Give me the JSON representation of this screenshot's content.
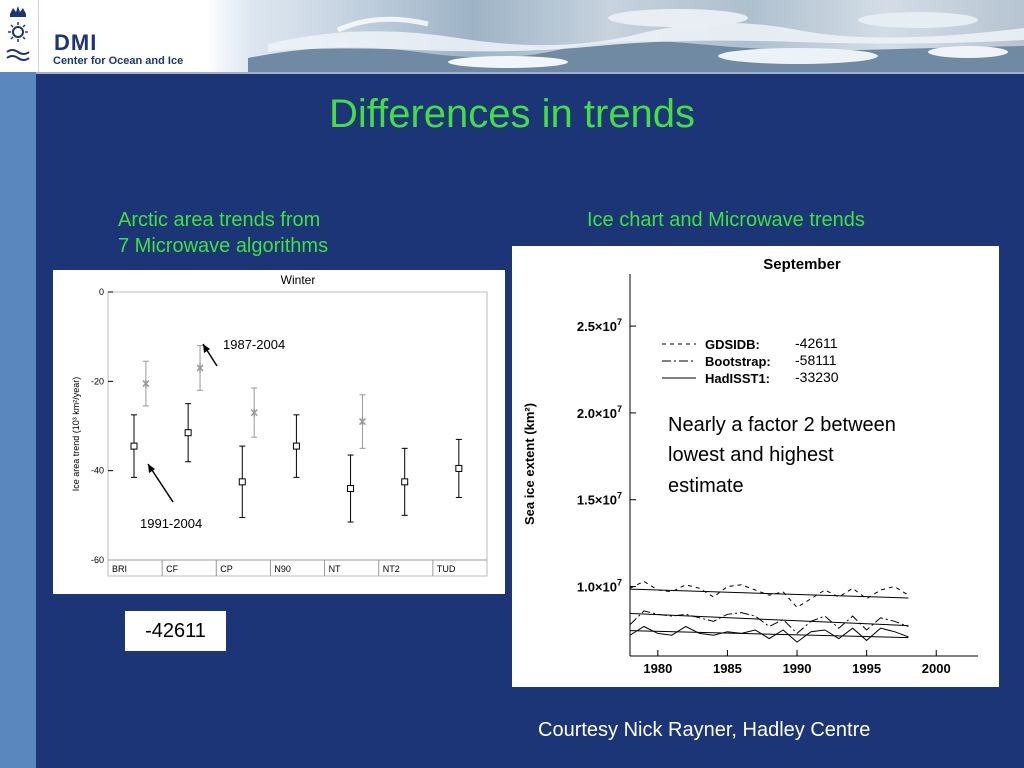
{
  "header": {
    "logo_text": "DMI",
    "org_name": "Center for Ocean and Ice"
  },
  "title": "Differences in trends",
  "left_heading": [
    "Arctic area trends from",
    "7 Microwave algorithms"
  ],
  "right_heading": "Ice chart and Microwave trends",
  "value_box": "-42611",
  "courtesy": "Courtesy Nick Rayner, Hadley Centre",
  "colors": {
    "background": "#1b3577",
    "title": "#44dd44",
    "heading": "#3fe03f",
    "series_1991": "#000000",
    "series_1987": "#999999"
  },
  "chart_data": [
    {
      "type": "scatter",
      "title": "Winter",
      "ylabel": "Ice area trend (10³ km²/year)",
      "ylim": [
        -60,
        0
      ],
      "yticks": [
        0,
        -20,
        -40,
        -60
      ],
      "categories": [
        "BRI",
        "CF",
        "CP",
        "N90",
        "NT",
        "NT2",
        "TUD"
      ],
      "series": [
        {
          "name": "1991-2004",
          "values": [
            -34.5,
            -31.5,
            -42.5,
            -34.5,
            -44,
            -42.5,
            -39.5
          ],
          "errors": [
            7,
            6.5,
            8,
            7,
            7.5,
            7.5,
            6.5
          ]
        },
        {
          "name": "1987-2004",
          "values": [
            -20.5,
            -17,
            -27,
            null,
            -29,
            null,
            null
          ],
          "errors": [
            5,
            5,
            5.5,
            null,
            6,
            null,
            null
          ]
        }
      ],
      "annotations": [
        "1987-2004",
        "1991-2004"
      ]
    },
    {
      "type": "line",
      "title": "September",
      "ylabel": "Sea ice extent (km²)",
      "xlim": [
        1978,
        2003
      ],
      "ylim": [
        6000000,
        28000000
      ],
      "xticks": [
        1980,
        1985,
        1990,
        1995,
        2000
      ],
      "yticks": [
        {
          "value": 25000000,
          "mantissa": "2.5×10",
          "exp": "7"
        },
        {
          "value": 20000000,
          "mantissa": "2.0×10",
          "exp": "7"
        },
        {
          "value": 15000000,
          "mantissa": "1.5×10",
          "exp": "7"
        },
        {
          "value": 10000000,
          "mantissa": "1.0×10",
          "exp": "7"
        }
      ],
      "x": [
        1978,
        1979,
        1980,
        1981,
        1982,
        1983,
        1984,
        1985,
        1986,
        1987,
        1988,
        1989,
        1990,
        1991,
        1992,
        1993,
        1994,
        1995,
        1996,
        1997,
        1998
      ],
      "series": [
        {
          "name": "GDSIDB:",
          "trend_label": "-42611",
          "style": "dashed",
          "values": [
            9900000,
            10300000,
            9800000,
            9700000,
            10100000,
            9900000,
            9400000,
            10000000,
            10100000,
            9800000,
            9500000,
            9700000,
            8800000,
            9300000,
            9800000,
            9400000,
            9900000,
            9300000,
            9800000,
            10000000,
            9500000
          ],
          "trend": [
            9850000,
            9340000
          ]
        },
        {
          "name": "Bootstrap:",
          "trend_label": "-58111",
          "style": "dashdot",
          "values": [
            7800000,
            8600000,
            8400000,
            8300000,
            8400000,
            8200000,
            8000000,
            8400000,
            8500000,
            8300000,
            7700000,
            8100000,
            7300000,
            8000000,
            8300000,
            7600000,
            8300000,
            7500000,
            8200000,
            8000000,
            7700000
          ],
          "trend": [
            8450000,
            7750000
          ]
        },
        {
          "name": "HadISST1:",
          "trend_label": "-33230",
          "style": "solid",
          "values": [
            7200000,
            7700000,
            7300000,
            7200000,
            7700000,
            7300000,
            7200000,
            7400000,
            7300000,
            7500000,
            7000000,
            7500000,
            6800000,
            7400000,
            7500000,
            7000000,
            7600000,
            6900000,
            7600000,
            7400000,
            7100000
          ],
          "trend": [
            7460000,
            7060000
          ]
        }
      ],
      "annotation": [
        "Nearly a factor 2 between",
        "lowest and highest",
        "estimate"
      ]
    }
  ]
}
